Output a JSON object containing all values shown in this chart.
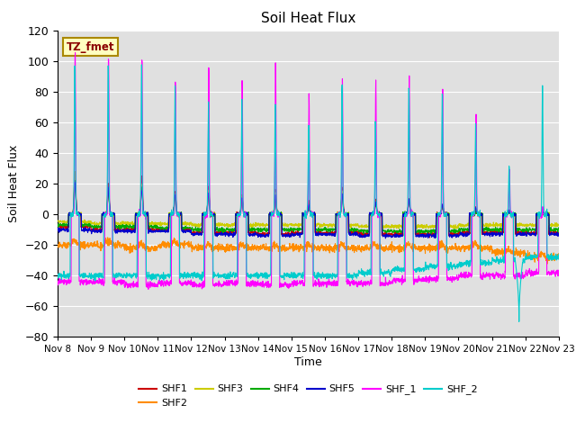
{
  "title": "Soil Heat Flux",
  "xlabel": "Time",
  "ylabel": "Soil Heat Flux",
  "ylim": [
    -80,
    120
  ],
  "xlim": [
    0,
    15
  ],
  "x_tick_labels": [
    "Nov 8",
    "Nov 9",
    "Nov 10",
    "Nov 11",
    "Nov 12",
    "Nov 13",
    "Nov 14",
    "Nov 15",
    "Nov 16",
    "Nov 17",
    "Nov 18",
    "Nov 19",
    "Nov 20",
    "Nov 21",
    "Nov 22",
    "Nov 23"
  ],
  "annotation_text": "TZ_fmet",
  "annotation_bg": "#FFFFC0",
  "annotation_fg": "#8B0000",
  "series_colors": {
    "SHF1": "#CC0000",
    "SHF2": "#FF8C00",
    "SHF3": "#CCCC00",
    "SHF4": "#00AA00",
    "SHF5": "#0000CC",
    "SHF_1": "#FF00FF",
    "SHF_2": "#00CCCC"
  },
  "bg_color": "#E0E0E0",
  "grid_color": "#FFFFFF",
  "n_days": 15,
  "points_per_day": 144,
  "shf1_peaks": [
    27,
    20,
    25,
    15,
    18,
    13,
    16,
    8,
    18,
    9,
    10,
    6,
    4,
    2,
    2
  ],
  "shf1_night": [
    -8,
    -10,
    -10,
    -10,
    -12,
    -12,
    -13,
    -12,
    -12,
    -13,
    -13,
    -13,
    -12,
    -12,
    -12
  ],
  "shf2_base": [
    -20,
    -20,
    -22,
    -20,
    -22,
    -22,
    -22,
    -22,
    -22,
    -22,
    -22,
    -22,
    -22,
    -25,
    -28
  ],
  "shf3_peaks": [
    28,
    18,
    20,
    13,
    15,
    12,
    14,
    6,
    15,
    8,
    9,
    6,
    3,
    2,
    2
  ],
  "shf3_night": [
    -5,
    -6,
    -6,
    -6,
    -7,
    -7,
    -7,
    -7,
    -7,
    -8,
    -8,
    -8,
    -7,
    -7,
    -7
  ],
  "shf4_peaks": [
    22,
    15,
    18,
    12,
    13,
    10,
    12,
    5,
    13,
    7,
    8,
    5,
    2,
    1,
    1
  ],
  "shf4_night": [
    -7,
    -8,
    -8,
    -9,
    -10,
    -10,
    -10,
    -10,
    -10,
    -11,
    -11,
    -11,
    -10,
    -10,
    -10
  ],
  "shf5_peaks": [
    20,
    17,
    16,
    13,
    14,
    11,
    12,
    6,
    13,
    8,
    9,
    6,
    4,
    2,
    3
  ],
  "shf5_night": [
    -10,
    -11,
    -11,
    -11,
    -13,
    -13,
    -14,
    -13,
    -13,
    -14,
    -14,
    -14,
    -13,
    -13,
    -13
  ],
  "shf_1_peaks": [
    107,
    104,
    104,
    87,
    98,
    88,
    98,
    80,
    87,
    88,
    90,
    81,
    67,
    30,
    5
  ],
  "shf_1_night": [
    -44,
    -44,
    -46,
    -45,
    -46,
    -45,
    -46,
    -45,
    -45,
    -45,
    -43,
    -42,
    -40,
    -40,
    -38
  ],
  "shf_2_peaks": [
    97,
    98,
    97,
    83,
    73,
    75,
    72,
    60,
    85,
    60,
    83,
    80,
    60,
    31,
    82
  ],
  "shf_2_night": [
    -40,
    -40,
    -40,
    -40,
    -40,
    -40,
    -40,
    -40,
    -40,
    -38,
    -36,
    -34,
    -32,
    -30,
    -28
  ]
}
